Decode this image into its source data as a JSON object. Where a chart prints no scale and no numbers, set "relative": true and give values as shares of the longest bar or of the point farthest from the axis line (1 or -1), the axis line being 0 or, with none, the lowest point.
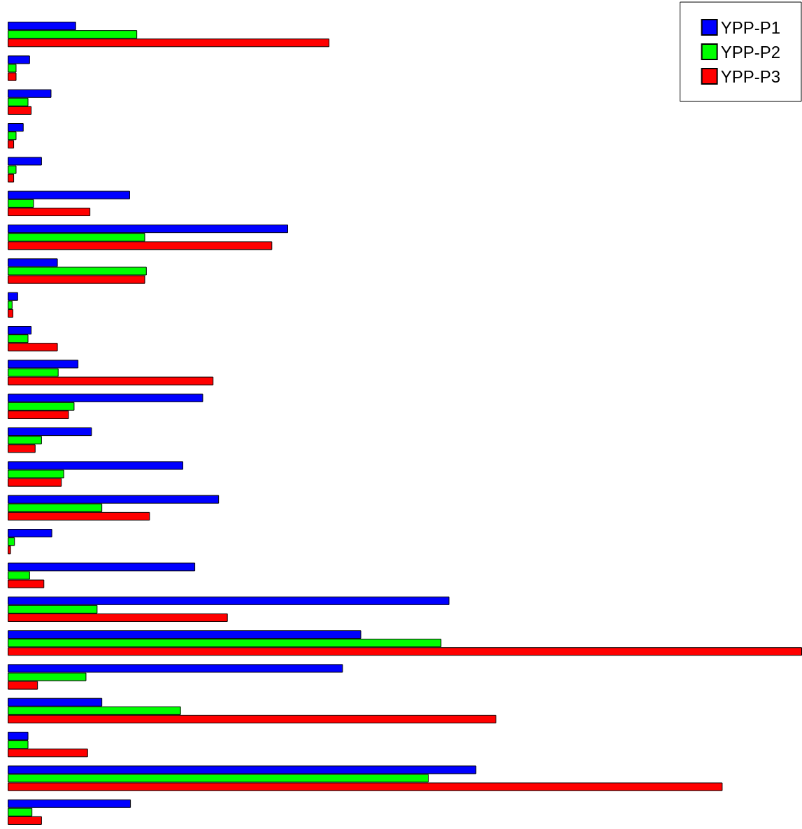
{
  "chart_data": {
    "type": "bar",
    "orientation": "horizontal",
    "relative": true,
    "legend": "top right",
    "categories": [
      null,
      null,
      null,
      null,
      null,
      null,
      null,
      null,
      null,
      null,
      null,
      null,
      null,
      null,
      null,
      null,
      null,
      null,
      null,
      null,
      null,
      null,
      null,
      null
    ],
    "series": [
      {
        "name": "YPP-P1",
        "color": "#0000ff",
        "values": [
          0.086,
          0.028,
          0.055,
          0.02,
          0.043,
          0.154,
          0.353,
          0.063,
          0.013,
          0.03,
          0.089,
          0.246,
          0.106,
          0.221,
          0.266,
          0.056,
          0.236,
          0.556,
          0.445,
          0.422,
          0.119,
          0.026,
          0.59,
          0.155
        ]
      },
      {
        "name": "YPP-P2",
        "color": "#00ff00",
        "values": [
          0.163,
          0.011,
          0.026,
          0.011,
          0.011,
          0.033,
          0.173,
          0.175,
          0.006,
          0.026,
          0.064,
          0.084,
          0.043,
          0.071,
          0.119,
          0.009,
          0.028,
          0.113,
          0.546,
          0.099,
          0.218,
          0.026,
          0.53,
          0.031
        ]
      },
      {
        "name": "YPP-P3",
        "color": "#ff0000",
        "values": [
          0.405,
          0.011,
          0.03,
          0.008,
          0.008,
          0.104,
          0.333,
          0.173,
          0.007,
          0.063,
          0.259,
          0.077,
          0.035,
          0.068,
          0.179,
          0.004,
          0.046,
          0.277,
          1,
          0.038,
          0.615,
          0.101,
          0.9,
          0.043
        ]
      }
    ]
  }
}
